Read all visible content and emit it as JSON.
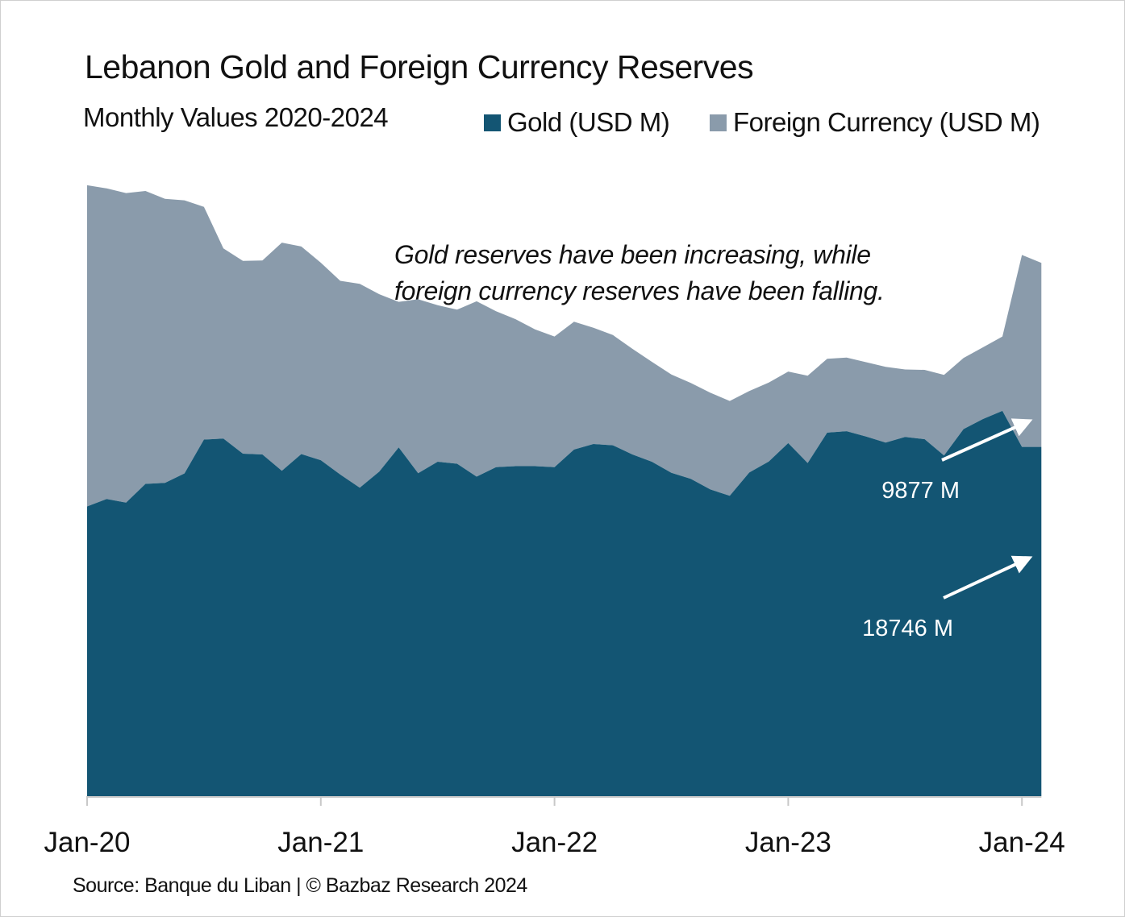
{
  "chart_data": {
    "type": "area",
    "stacked": true,
    "title": "Lebanon Gold and Foreign Currency Reserves",
    "subtitle": "Monthly Values 2020-2024",
    "x": [
      "2020-01",
      "2020-02",
      "2020-03",
      "2020-04",
      "2020-05",
      "2020-06",
      "2020-07",
      "2020-08",
      "2020-09",
      "2020-10",
      "2020-11",
      "2020-12",
      "2021-01",
      "2021-02",
      "2021-03",
      "2021-04",
      "2021-05",
      "2021-06",
      "2021-07",
      "2021-08",
      "2021-09",
      "2021-10",
      "2021-11",
      "2021-12",
      "2022-01",
      "2022-02",
      "2022-03",
      "2022-04",
      "2022-05",
      "2022-06",
      "2022-07",
      "2022-08",
      "2022-09",
      "2022-10",
      "2022-11",
      "2022-12",
      "2023-01",
      "2023-02",
      "2023-03",
      "2023-04",
      "2023-05",
      "2023-06",
      "2023-07",
      "2023-08",
      "2023-09",
      "2023-10",
      "2023-11",
      "2023-12",
      "2024-01",
      "2024-02"
    ],
    "series": [
      {
        "name": "Gold (USD M)",
        "color": "#135573",
        "values": [
          15550,
          15950,
          15750,
          16760,
          16810,
          17320,
          19140,
          19190,
          18380,
          18340,
          17460,
          18360,
          18030,
          17260,
          16550,
          17420,
          18720,
          17330,
          17950,
          17840,
          17150,
          17660,
          17710,
          17710,
          17660,
          18600,
          18900,
          18830,
          18340,
          17950,
          17350,
          17030,
          16460,
          16120,
          17370,
          17960,
          18950,
          17880,
          19510,
          19590,
          19300,
          18980,
          19280,
          19160,
          18280,
          19700,
          20240,
          20680,
          18746,
          18746
        ]
      },
      {
        "name": "Foreign Currency (USD M)",
        "color": "#8a9bab",
        "values": [
          17240,
          16670,
          16620,
          15720,
          15250,
          14660,
          12490,
          10210,
          10350,
          10410,
          12250,
          11140,
          10600,
          10400,
          10950,
          9520,
          7810,
          9340,
          8400,
          8270,
          9410,
          8370,
          7890,
          7340,
          7010,
          6860,
          6240,
          5920,
          5670,
          5360,
          5280,
          5150,
          5190,
          5090,
          4370,
          4240,
          3840,
          4690,
          3960,
          3950,
          3990,
          4060,
          3620,
          3720,
          4330,
          3820,
          3850,
          3990,
          10300,
          9877
        ]
      }
    ],
    "end_labels": [
      "9877 M",
      "18746 M"
    ],
    "annotation": [
      "Gold reserves have been increasing, while",
      "foreign currency reserves have been falling."
    ],
    "x_tick_labels": [
      "Jan-20",
      "Jan-21",
      "Jan-22",
      "Jan-23",
      "Jan-24"
    ],
    "ylim": [
      0,
      33000
    ],
    "grid": false,
    "y_axis_visible": false,
    "legend_placement": "top-right",
    "source": "Source: Banque du Liban | © Bazbaz Research 2024"
  }
}
